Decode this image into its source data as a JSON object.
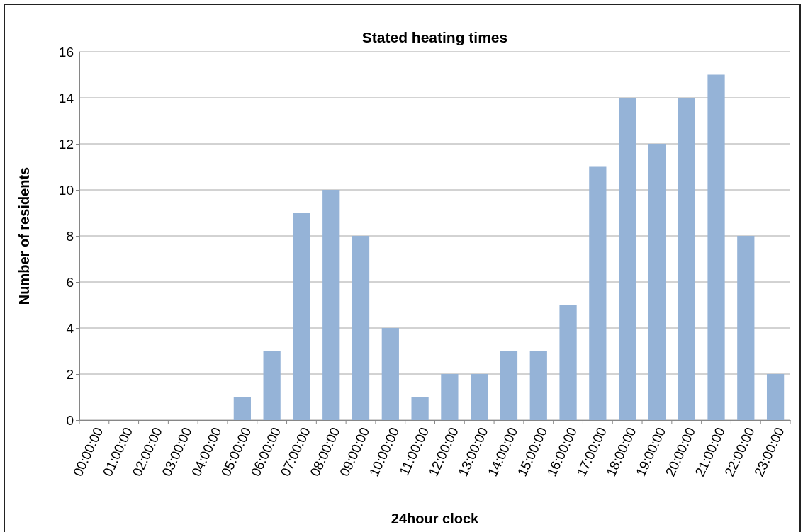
{
  "chart_data": {
    "type": "bar",
    "title": "Stated heating times",
    "xlabel": "24hour clock",
    "ylabel": "Number of residents",
    "categories": [
      "00:00:00",
      "01:00:00",
      "02:00:00",
      "03:00:00",
      "04:00:00",
      "05:00:00",
      "06:00:00",
      "07:00:00",
      "08:00:00",
      "09:00:00",
      "10:00:00",
      "11:00:00",
      "12:00:00",
      "13:00:00",
      "14:00:00",
      "15:00:00",
      "16:00:00",
      "17:00:00",
      "18:00:00",
      "19:00:00",
      "20:00:00",
      "21:00:00",
      "22:00:00",
      "23:00:00"
    ],
    "values": [
      0,
      0,
      0,
      0,
      0,
      1,
      3,
      9,
      10,
      8,
      4,
      1,
      2,
      2,
      3,
      3,
      5,
      11,
      14,
      12,
      14,
      15,
      8,
      2
    ],
    "color": "#95b3d7",
    "ylim": [
      0,
      16
    ],
    "yticks": [
      0,
      2,
      4,
      6,
      8,
      10,
      12,
      14,
      16
    ],
    "grid": "y"
  }
}
